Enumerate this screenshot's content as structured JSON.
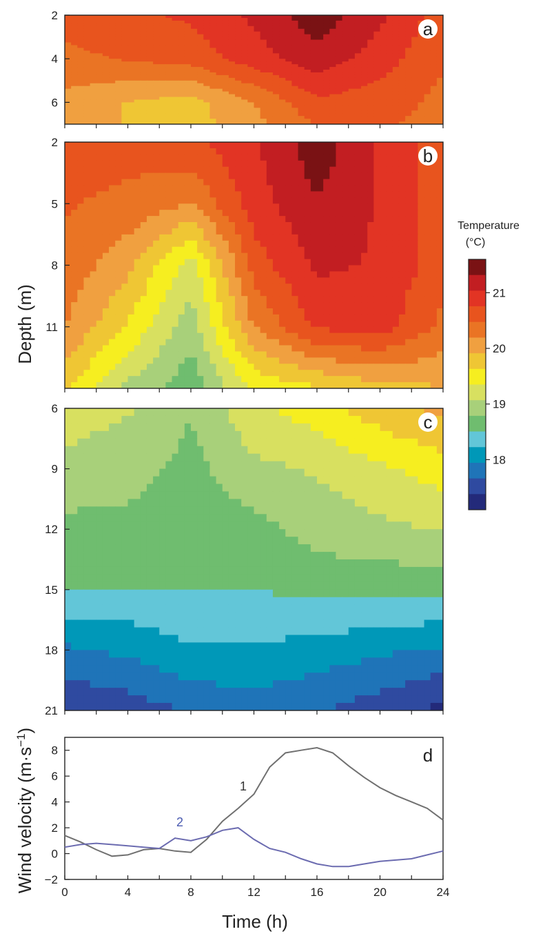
{
  "chart_data": [
    {
      "panel": "a",
      "type": "heatmap",
      "description_units": "Temperature (°C) versus depth and time",
      "x": [
        0,
        4,
        8,
        12,
        16,
        20,
        24
      ],
      "y": [
        2,
        4,
        6,
        7
      ],
      "ylim": [
        2,
        7
      ],
      "xlim": [
        0,
        24
      ],
      "yticks": [
        2,
        4,
        6
      ],
      "values": [
        [
          20.6,
          20.7,
          20.8,
          21.1,
          21.5,
          21.1,
          20.6
        ],
        [
          20.4,
          20.5,
          20.6,
          20.9,
          21.2,
          20.9,
          20.5
        ],
        [
          20.1,
          19.9,
          19.8,
          20.2,
          20.7,
          20.6,
          20.4
        ],
        [
          20.1,
          19.9,
          19.8,
          20.1,
          20.5,
          20.5,
          20.4
        ]
      ]
    },
    {
      "panel": "b",
      "type": "heatmap",
      "description_units": "Temperature (°C) versus depth and time",
      "x": [
        0,
        4,
        8,
        12,
        16,
        20,
        24
      ],
      "y": [
        2,
        5,
        8,
        11,
        14
      ],
      "ylim": [
        2,
        14
      ],
      "xlim": [
        0,
        24
      ],
      "yticks": [
        2,
        5,
        8,
        11
      ],
      "values": [
        [
          20.6,
          20.6,
          20.7,
          21.0,
          21.5,
          21.0,
          20.6
        ],
        [
          20.5,
          20.4,
          20.2,
          20.9,
          21.3,
          21.0,
          20.6
        ],
        [
          20.4,
          20.0,
          19.2,
          20.6,
          21.1,
          21.0,
          20.6
        ],
        [
          20.2,
          19.6,
          18.9,
          20.2,
          20.8,
          20.9,
          20.4
        ],
        [
          19.7,
          19.0,
          18.6,
          19.4,
          19.6,
          19.8,
          19.9
        ]
      ]
    },
    {
      "panel": "c",
      "type": "heatmap",
      "description_units": "Temperature (°C) versus depth and time",
      "x": [
        0,
        4,
        8,
        12,
        16,
        20,
        24
      ],
      "y": [
        6,
        9,
        12,
        15,
        18,
        21
      ],
      "ylim": [
        6,
        21
      ],
      "xlim": [
        0,
        24
      ],
      "yticks": [
        6,
        9,
        12,
        15,
        18,
        21
      ],
      "values": [
        [
          19.2,
          19.1,
          18.8,
          19.3,
          19.5,
          19.8,
          20.0
        ],
        [
          19.0,
          18.9,
          18.7,
          19.0,
          19.1,
          19.3,
          19.5
        ],
        [
          18.7,
          18.7,
          18.6,
          18.7,
          18.9,
          19.0,
          19.1
        ],
        [
          18.5,
          18.5,
          18.5,
          18.5,
          18.6,
          18.6,
          18.6
        ],
        [
          17.9,
          18.0,
          18.2,
          18.2,
          18.1,
          18.0,
          17.9
        ],
        [
          17.4,
          17.5,
          17.7,
          17.8,
          17.7,
          17.5,
          17.3
        ]
      ]
    },
    {
      "panel": "d",
      "type": "line",
      "x": [
        0,
        1,
        2,
        3,
        4,
        5,
        6,
        7,
        8,
        9,
        10,
        11,
        12,
        13,
        14,
        15,
        16,
        17,
        18,
        19,
        20,
        21,
        22,
        23,
        24
      ],
      "series": [
        {
          "name": "1",
          "color": "#707070",
          "values": [
            1.4,
            0.9,
            0.3,
            -0.2,
            -0.1,
            0.3,
            0.4,
            0.2,
            0.1,
            1.1,
            2.5,
            3.5,
            4.6,
            6.7,
            7.8,
            8.0,
            8.2,
            7.8,
            6.8,
            5.9,
            5.1,
            4.5,
            4.0,
            3.5,
            2.6
          ]
        },
        {
          "name": "2",
          "color": "#6b6bb0",
          "values": [
            0.5,
            0.7,
            0.8,
            0.7,
            0.6,
            0.5,
            0.4,
            1.2,
            1.0,
            1.3,
            1.8,
            2.0,
            1.1,
            0.4,
            0.1,
            -0.4,
            -0.8,
            -1.0,
            -1.0,
            -0.8,
            -0.6,
            -0.5,
            -0.4,
            -0.1,
            0.2
          ]
        }
      ],
      "xlabel": "Time (h)",
      "ylabel": "Wind velocity (m·s⁻¹)",
      "xlim": [
        0,
        24
      ],
      "ylim": [
        -2,
        9
      ],
      "xticks": [
        0,
        4,
        8,
        12,
        16,
        20,
        24
      ],
      "yticks": [
        -2,
        0,
        2,
        4,
        6,
        8
      ]
    }
  ],
  "shared": {
    "ylabel_depth": "Depth (m)",
    "xlabel_time": "Time (h)"
  },
  "colorbar": {
    "title_line1": "Temperature",
    "title_line2": "(°C)",
    "min": 17.1,
    "max": 21.6,
    "ticks": [
      18,
      19,
      20,
      21
    ]
  },
  "panel_letters": [
    "a",
    "b",
    "c",
    "d"
  ],
  "colors": {
    "stops": [
      "#232a7a",
      "#2f4aa0",
      "#1f74b8",
      "#0098b8",
      "#62c6d8",
      "#6fbd6f",
      "#a8d07a",
      "#d8e060",
      "#f6ee20",
      "#efc634",
      "#f0a040",
      "#ea7424",
      "#e8541e",
      "#e23424",
      "#c21e22",
      "#7a1214"
    ]
  }
}
